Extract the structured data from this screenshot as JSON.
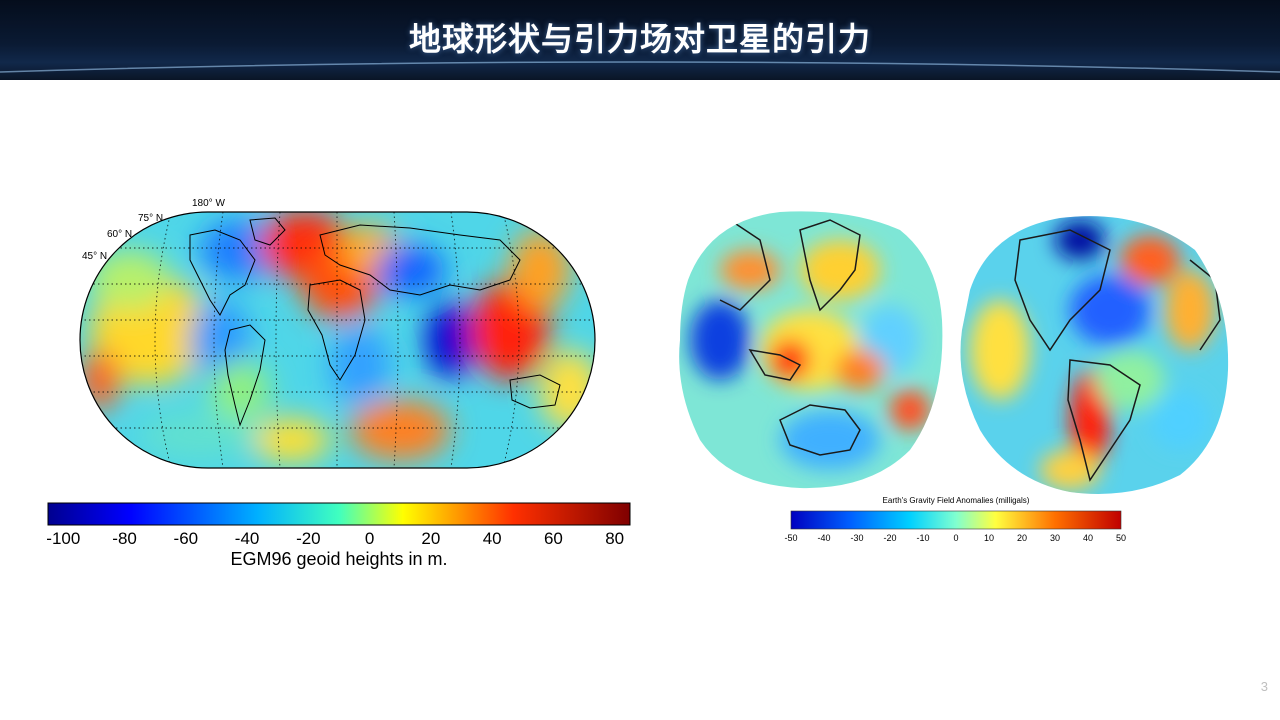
{
  "slide": {
    "title": "地球形状与引力场对卫星的引力",
    "page_number": "3"
  },
  "left_figure": {
    "lat_labels": [
      "180° W",
      "75° N",
      "60° N",
      "45° N"
    ],
    "colorbar_ticks": [
      "-100",
      "-80",
      "-60",
      "-40",
      "-20",
      "0",
      "20",
      "40",
      "60",
      "80"
    ],
    "colorbar_label": "EGM96 geoid heights in m.",
    "colorbar_range": [
      -105,
      85
    ]
  },
  "right_figure": {
    "caption": "Earth's Gravity Field Anomalies (milligals)",
    "colorbar_ticks": [
      "-50",
      "-40",
      "-30",
      "-20",
      "-10",
      "0",
      "10",
      "20",
      "30",
      "40",
      "50"
    ],
    "colorbar_range": [
      -50,
      50
    ]
  }
}
